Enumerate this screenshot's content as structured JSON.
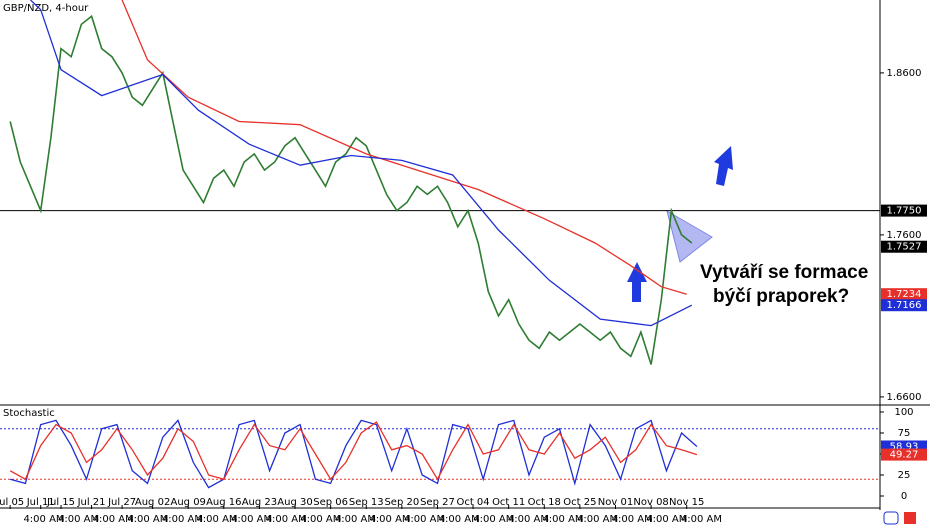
{
  "chart_data": [
    {
      "type": "line",
      "title": "GBP/NZD, 4-hour",
      "xlim": [
        -2,
        171
      ],
      "ylim": [
        1.655,
        1.905
      ],
      "yticks": [
        {
          "value": 1.66,
          "label": "1.6600"
        },
        {
          "value": 1.76,
          "label": "1.7600"
        },
        {
          "value": 1.86,
          "label": "1.8600"
        }
      ],
      "level_line": 1.775,
      "series": [
        {
          "name": "GBP/NZD",
          "color": "#2e7d32",
          "x": [
            0,
            2,
            4,
            6,
            8,
            10,
            12,
            14,
            16,
            18,
            20,
            22,
            24,
            26,
            28,
            30,
            32,
            34,
            36,
            38,
            40,
            42,
            44,
            46,
            48,
            50,
            52,
            54,
            56,
            58,
            60,
            62,
            64,
            66,
            68,
            70,
            72,
            74,
            76,
            78,
            80,
            82,
            84,
            86,
            88,
            90,
            92,
            94,
            96,
            98,
            100,
            102,
            104,
            106,
            108,
            110,
            112,
            114,
            116,
            118,
            120,
            122,
            124,
            126,
            128,
            130,
            132,
            134
          ],
          "values": [
            1.83,
            1.805,
            1.79,
            1.775,
            1.82,
            1.875,
            1.87,
            1.89,
            1.895,
            1.875,
            1.87,
            1.86,
            1.845,
            1.84,
            1.85,
            1.86,
            1.83,
            1.8,
            1.79,
            1.78,
            1.795,
            1.8,
            1.79,
            1.805,
            1.81,
            1.8,
            1.805,
            1.815,
            1.82,
            1.81,
            1.8,
            1.79,
            1.805,
            1.81,
            1.82,
            1.815,
            1.8,
            1.785,
            1.775,
            1.78,
            1.79,
            1.785,
            1.79,
            1.78,
            1.765,
            1.775,
            1.755,
            1.725,
            1.71,
            1.72,
            1.705,
            1.695,
            1.69,
            1.7,
            1.695,
            1.7,
            1.705,
            1.7,
            1.695,
            1.7,
            1.69,
            1.685,
            1.7,
            1.68,
            1.72,
            1.775,
            1.76,
            1.755
          ]
        },
        {
          "name": "MA red",
          "color": "#e8302a",
          "x": [
            22,
            27,
            35,
            45,
            57,
            70,
            80,
            92,
            105,
            115,
            122,
            128,
            133
          ],
          "values": [
            1.905,
            1.868,
            1.845,
            1.83,
            1.828,
            1.81,
            1.8,
            1.788,
            1.77,
            1.755,
            1.741,
            1.728,
            1.7234
          ]
        },
        {
          "name": "MA blue",
          "color": "#1f2fd6",
          "x": [
            4,
            6,
            10,
            18,
            30,
            37,
            47,
            57,
            67,
            77,
            87,
            96,
            106,
            116,
            126,
            134
          ],
          "values": [
            1.905,
            1.899,
            1.862,
            1.846,
            1.859,
            1.837,
            1.816,
            1.803,
            1.809,
            1.806,
            1.797,
            1.763,
            1.732,
            1.708,
            1.704,
            1.7166
          ]
        }
      ],
      "price_tags": [
        {
          "value": 1.775,
          "label": "1.7750",
          "color": "#000000"
        },
        {
          "value": 1.7527,
          "label": "1.7527",
          "color": "#000000"
        },
        {
          "value": 1.7234,
          "label": "1.7234",
          "color": "#e8302a"
        },
        {
          "value": 1.7166,
          "label": "1.7166",
          "color": "#1f2fd6"
        }
      ],
      "annotation": [
        "Vytváří se formace",
        "býčí praporek?"
      ]
    },
    {
      "type": "line",
      "title": "Stochastic",
      "xlim": [
        -2,
        171
      ],
      "ylim": [
        -10.7,
        108.3
      ],
      "yticks": [
        0,
        25,
        50,
        75,
        100
      ],
      "bands": [
        20,
        80
      ],
      "x": [
        0,
        3,
        6,
        9,
        12,
        15,
        18,
        21,
        24,
        27,
        30,
        33,
        36,
        39,
        42,
        45,
        48,
        51,
        54,
        57,
        60,
        63,
        66,
        69,
        72,
        75,
        78,
        81,
        84,
        87,
        90,
        93,
        96,
        99,
        102,
        105,
        108,
        111,
        114,
        117,
        120,
        123,
        126,
        129,
        132,
        135
      ],
      "series": [
        {
          "name": "%K",
          "color": "#1f2fd6",
          "values": [
            20,
            15,
            85,
            90,
            60,
            20,
            80,
            85,
            30,
            15,
            70,
            90,
            40,
            10,
            20,
            85,
            90,
            30,
            75,
            85,
            20,
            15,
            60,
            90,
            85,
            30,
            80,
            25,
            15,
            85,
            80,
            20,
            85,
            90,
            25,
            70,
            80,
            15,
            85,
            60,
            20,
            80,
            90,
            30,
            75,
            58.93
          ]
        },
        {
          "name": "%D",
          "color": "#e8302a",
          "values": [
            30,
            20,
            60,
            85,
            75,
            40,
            55,
            80,
            55,
            25,
            45,
            80,
            65,
            25,
            20,
            55,
            85,
            60,
            55,
            80,
            50,
            20,
            40,
            75,
            88,
            55,
            60,
            50,
            20,
            55,
            85,
            50,
            55,
            85,
            55,
            50,
            75,
            45,
            55,
            70,
            40,
            55,
            85,
            60,
            55,
            49.27
          ]
        }
      ],
      "price_tags": [
        {
          "value": 58.93,
          "label": "58.93",
          "color": "#1f2fd6"
        },
        {
          "value": 49.27,
          "label": "49.27",
          "color": "#e8302a"
        }
      ],
      "xticks": [
        {
          "value": 0,
          "label": "Jul 05"
        },
        {
          "value": 6,
          "label": "Jul 11"
        },
        {
          "value": 10,
          "label": "Jul 15"
        },
        {
          "value": 16,
          "label": "Jul 21"
        },
        {
          "value": 22,
          "label": "Jul 27"
        },
        {
          "value": 28,
          "label": "Aug 02"
        },
        {
          "value": 35,
          "label": "Aug 09"
        },
        {
          "value": 42,
          "label": "Aug 16"
        },
        {
          "value": 49,
          "label": "Aug 23"
        },
        {
          "value": 56,
          "label": "Aug 30"
        },
        {
          "value": 63,
          "label": "Sep 06"
        },
        {
          "value": 70,
          "label": "Sep 13"
        },
        {
          "value": 77,
          "label": "Sep 20"
        },
        {
          "value": 84,
          "label": "Sep 27"
        },
        {
          "value": 91,
          "label": "Oct 04"
        },
        {
          "value": 98,
          "label": "Oct 11"
        },
        {
          "value": 105,
          "label": "Oct 18"
        },
        {
          "value": 112,
          "label": "Oct 25"
        },
        {
          "value": 119,
          "label": "Nov 01"
        },
        {
          "value": 126,
          "label": "Nov 08"
        },
        {
          "value": 133,
          "label": "Nov 15"
        }
      ]
    }
  ],
  "time_labels": [
    "4:00 AM",
    "4:00 AM",
    "4:00 AM",
    "4:00 AM",
    "4:00 AM",
    "4:00 AM",
    "4:00 AM",
    "4:00 AM",
    "4:00 AM",
    "4:00 AM",
    "4:00 AM",
    "4:00 AM",
    "4:00 AM",
    "4:00 AM",
    "4:00 AM",
    "4:00 AM",
    "4:00 AM",
    "4:00 AM",
    "4:00 AM",
    "4:00 AM"
  ]
}
